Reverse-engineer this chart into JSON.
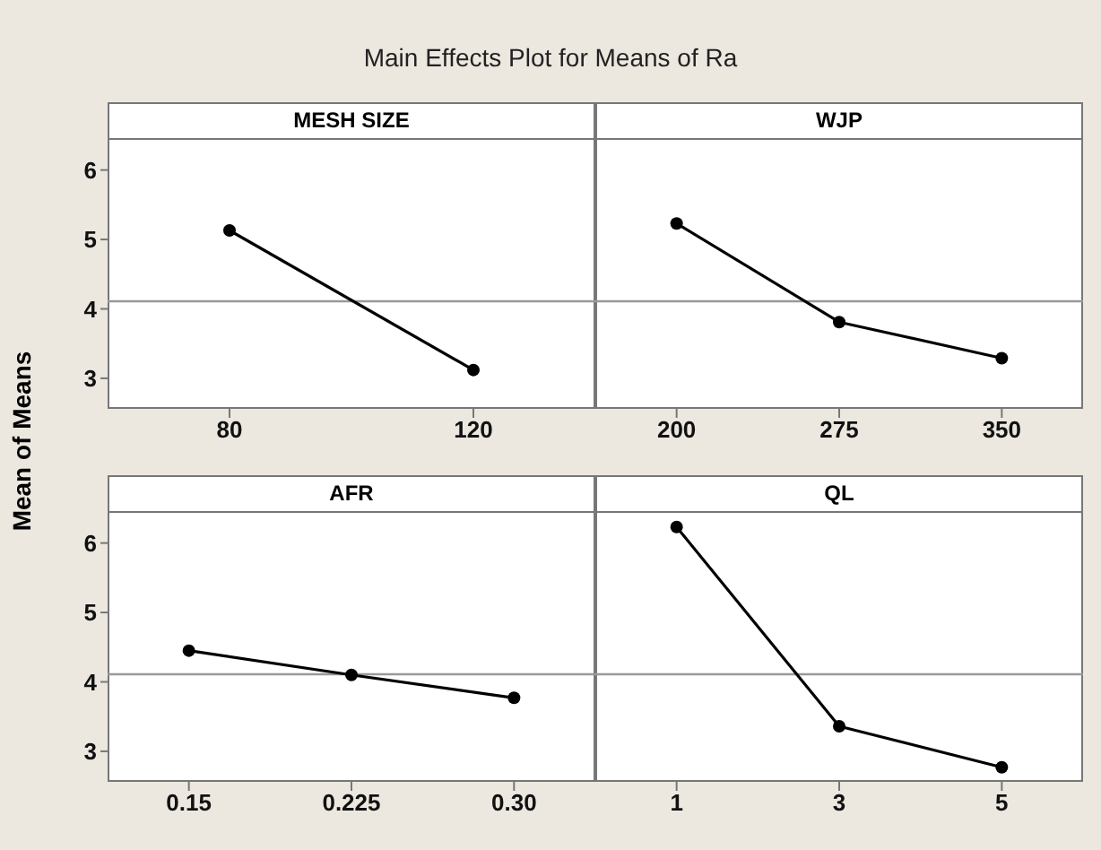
{
  "chart_data": [
    {
      "type": "line",
      "title": "Main Effects Plot for Means of Ra",
      "ylabel": "Mean of Means",
      "xlabel": "MESH SIZE",
      "categories": [
        "80",
        "120"
      ],
      "values": [
        5.13,
        3.12
      ],
      "color": "#000000",
      "marker": "circle",
      "ylim": [
        2.56,
        6.46
      ],
      "yticks": [
        3,
        4,
        5,
        6
      ],
      "ref_lines": [
        {
          "axis": "y",
          "value": 4.11,
          "color": "#999999"
        }
      ]
    },
    {
      "type": "line",
      "xlabel": "WJP",
      "categories": [
        "200",
        "275",
        "350"
      ],
      "values": [
        5.23,
        3.81,
        3.29
      ],
      "color": "#000000",
      "marker": "circle",
      "ylim": [
        2.56,
        6.46
      ],
      "yticks": [
        3,
        4,
        5,
        6
      ],
      "tick_labels": "x",
      "ref_lines": [
        {
          "axis": "y",
          "value": 4.11,
          "color": "#999999"
        }
      ]
    },
    {
      "type": "line",
      "xlabel": "AFR",
      "categories": [
        "0.15",
        "0.225",
        "0.30"
      ],
      "values": [
        4.45,
        4.1,
        3.77
      ],
      "color": "#000000",
      "marker": "circle",
      "ylim": [
        2.56,
        6.46
      ],
      "yticks": [
        3,
        4,
        5,
        6
      ],
      "ref_lines": [
        {
          "axis": "y",
          "value": 4.11,
          "color": "#999999"
        }
      ]
    },
    {
      "type": "line",
      "xlabel": "QL",
      "categories": [
        "1",
        "3",
        "5"
      ],
      "values": [
        6.23,
        3.36,
        2.77
      ],
      "color": "#000000",
      "marker": "circle",
      "ylim": [
        2.56,
        6.46
      ],
      "yticks": [
        3,
        4,
        5,
        6
      ],
      "tick_labels": "x",
      "ref_lines": [
        {
          "axis": "y",
          "value": 4.11,
          "color": "#999999"
        }
      ]
    }
  ]
}
